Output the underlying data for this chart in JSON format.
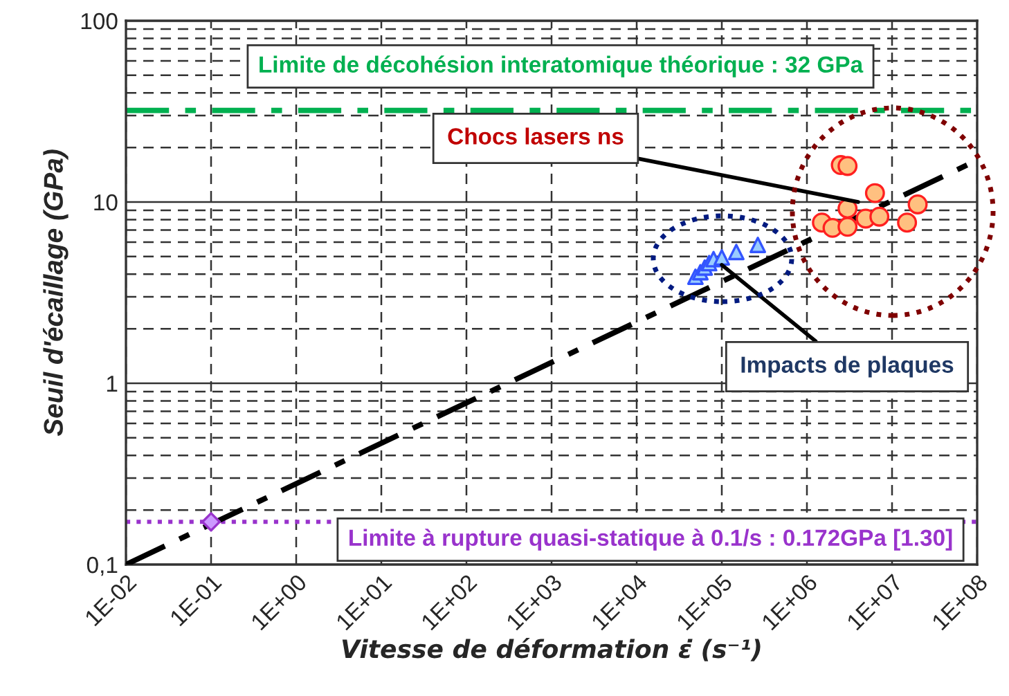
{
  "chart_data": {
    "type": "scatter",
    "xlabel": "Vitesse de déformation ε̇ (s⁻¹)",
    "ylabel": "Seuil d'écaillage (GPa)",
    "log": "xy",
    "xlim": [
      0.01,
      100000000
    ],
    "ylim": [
      0.1,
      100
    ],
    "xticks": [
      {
        "value": 0.01,
        "label": "1E-02"
      },
      {
        "value": 0.1,
        "label": "1E-01"
      },
      {
        "value": 1,
        "label": "1E+00"
      },
      {
        "value": 10,
        "label": "1E+01"
      },
      {
        "value": 100,
        "label": "1E+02"
      },
      {
        "value": 1000,
        "label": "1E+03"
      },
      {
        "value": 10000,
        "label": "1E+04"
      },
      {
        "value": 100000,
        "label": "1E+05"
      },
      {
        "value": 1000000,
        "label": "1E+06"
      },
      {
        "value": 10000000,
        "label": "1E+07"
      },
      {
        "value": 100000000,
        "label": "1E+08"
      }
    ],
    "yticks": [
      {
        "value": 0.1,
        "label": "0,1"
      },
      {
        "value": 0.2,
        "label": null
      },
      {
        "value": 0.3,
        "label": null
      },
      {
        "value": 0.4,
        "label": null
      },
      {
        "value": 0.5,
        "label": null
      },
      {
        "value": 0.6,
        "label": null
      },
      {
        "value": 0.7,
        "label": null
      },
      {
        "value": 0.8,
        "label": null
      },
      {
        "value": 0.9,
        "label": null
      },
      {
        "value": 1,
        "label": "1"
      },
      {
        "value": 2,
        "label": null
      },
      {
        "value": 3,
        "label": null
      },
      {
        "value": 4,
        "label": null
      },
      {
        "value": 5,
        "label": null
      },
      {
        "value": 6,
        "label": null
      },
      {
        "value": 7,
        "label": null
      },
      {
        "value": 8,
        "label": null
      },
      {
        "value": 9,
        "label": null
      },
      {
        "value": 10,
        "label": "10"
      },
      {
        "value": 20,
        "label": null
      },
      {
        "value": 30,
        "label": null
      },
      {
        "value": 40,
        "label": null
      },
      {
        "value": 50,
        "label": null
      },
      {
        "value": 60,
        "label": null
      },
      {
        "value": 70,
        "label": null
      },
      {
        "value": 80,
        "label": null
      },
      {
        "value": 90,
        "label": null
      },
      {
        "value": 100,
        "label": "100"
      }
    ],
    "grid": true,
    "series": [
      {
        "type": "line",
        "color": "#000000",
        "line_style": "dashdot",
        "marker": "none",
        "x": [
          0.01,
          100000000
        ],
        "values": [
          0.1,
          17
        ]
      },
      {
        "color": "#3355ff",
        "marker": "triangle",
        "x": [
          49000,
          56000,
          63000,
          71000,
          80000,
          100000,
          148000,
          265000
        ],
        "values": [
          3.87,
          4.1,
          4.35,
          4.6,
          4.84,
          4.95,
          5.3,
          5.8
        ]
      },
      {
        "color": "#ff2020",
        "marker": "circle",
        "x": [
          2500000,
          3000000,
          6300000,
          20000000,
          3000000,
          1500000,
          2000000,
          3000000,
          4900000,
          7100000,
          15000000
        ],
        "values": [
          16.0,
          15.8,
          11.2,
          9.7,
          9.2,
          7.7,
          7.2,
          7.3,
          8.1,
          8.3,
          7.7
        ]
      },
      {
        "color": "#9933cc",
        "marker": "diamond",
        "x": [
          0.1
        ],
        "values": [
          0.172
        ]
      }
    ],
    "ref_lines": [
      {
        "axis": "y",
        "value": 32,
        "label": "Limite de décohésion interatomique théorique : 32 GPa",
        "color": "#00b050",
        "line_style": "dashdot"
      },
      {
        "axis": "y",
        "value": 0.172,
        "label": "Limite à rupture quasi-statique à 0.1/s : 0.172GPa [1.30]",
        "color": "#9933cc",
        "line_style": "dotted"
      }
    ],
    "annotations": [
      {
        "text": "Chocs lasers ns",
        "x": 4000000,
        "y": 10
      },
      {
        "text": "Impacts de plaques",
        "x": 100000,
        "y": 4.5
      }
    ]
  }
}
